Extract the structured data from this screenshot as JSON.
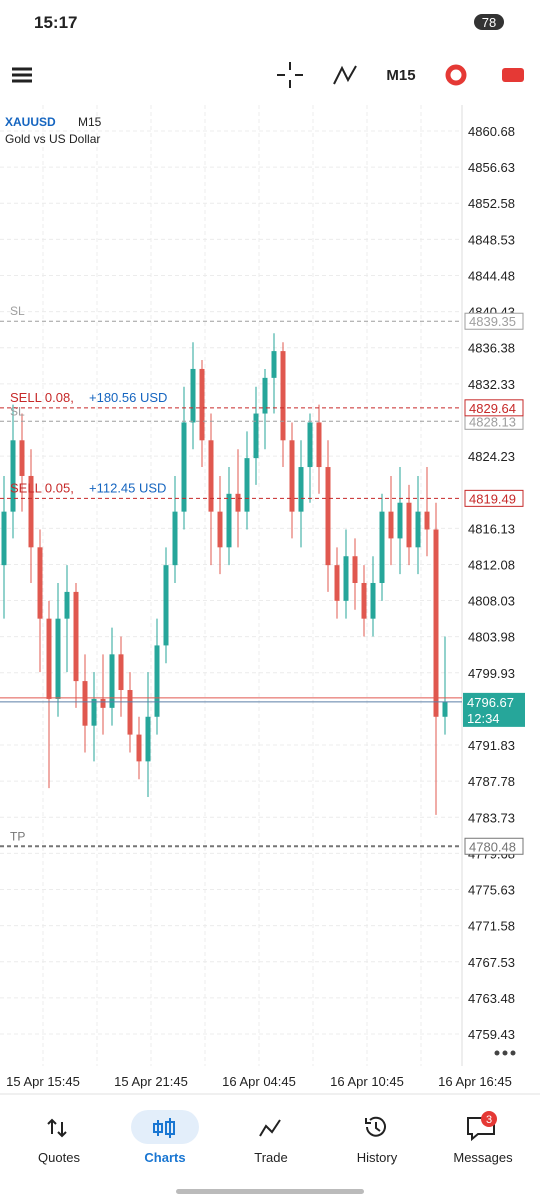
{
  "status_bar": {
    "time": "15:17",
    "battery": "78"
  },
  "toolbar": {
    "timeframe": "M15"
  },
  "chart": {
    "symbol": "XAUUSD",
    "timeframe": "M15",
    "description": "Gold vs US Dollar",
    "ylim": [
      4759.43,
      4860.68
    ],
    "yticks": [
      4860.68,
      4856.63,
      4852.58,
      4848.53,
      4844.48,
      4840.43,
      4836.38,
      4832.33,
      4824.23,
      4816.13,
      4812.08,
      4808.03,
      4803.98,
      4799.93,
      4791.83,
      4787.78,
      4783.73,
      4779.68,
      4775.63,
      4771.58,
      4767.53,
      4763.48,
      4759.43
    ],
    "x_labels": [
      "15 Apr 15:45",
      "15 Apr 21:45",
      "16 Apr 04:45",
      "16 Apr 10:45",
      "16 Apr 16:45"
    ],
    "up_color": "#26a69a",
    "down_color": "#e0584f",
    "candles": [
      {
        "open": 4812,
        "high": 4822,
        "low": 4806,
        "close": 4818
      },
      {
        "open": 4818,
        "high": 4830,
        "low": 4815,
        "close": 4826
      },
      {
        "open": 4826,
        "high": 4829,
        "low": 4818,
        "close": 4822
      },
      {
        "open": 4822,
        "high": 4825,
        "low": 4810,
        "close": 4814
      },
      {
        "open": 4814,
        "high": 4816,
        "low": 4800,
        "close": 4806
      },
      {
        "open": 4806,
        "high": 4808,
        "low": 4787,
        "close": 4797
      },
      {
        "open": 4797,
        "high": 4810,
        "low": 4795,
        "close": 4806
      },
      {
        "open": 4806,
        "high": 4812,
        "low": 4800,
        "close": 4809
      },
      {
        "open": 4809,
        "high": 4810,
        "low": 4796,
        "close": 4799
      },
      {
        "open": 4799,
        "high": 4802,
        "low": 4791,
        "close": 4794
      },
      {
        "open": 4794,
        "high": 4800,
        "low": 4790,
        "close": 4797
      },
      {
        "open": 4797,
        "high": 4802,
        "low": 4793,
        "close": 4796
      },
      {
        "open": 4796,
        "high": 4805,
        "low": 4794,
        "close": 4802
      },
      {
        "open": 4802,
        "high": 4804,
        "low": 4795,
        "close": 4798
      },
      {
        "open": 4798,
        "high": 4800,
        "low": 4791,
        "close": 4793
      },
      {
        "open": 4793,
        "high": 4795,
        "low": 4788,
        "close": 4790
      },
      {
        "open": 4790,
        "high": 4800,
        "low": 4786,
        "close": 4795
      },
      {
        "open": 4795,
        "high": 4806,
        "low": 4793,
        "close": 4803
      },
      {
        "open": 4803,
        "high": 4814,
        "low": 4801,
        "close": 4812
      },
      {
        "open": 4812,
        "high": 4822,
        "low": 4810,
        "close": 4818
      },
      {
        "open": 4818,
        "high": 4832,
        "low": 4816,
        "close": 4828
      },
      {
        "open": 4828,
        "high": 4837,
        "low": 4825,
        "close": 4834
      },
      {
        "open": 4834,
        "high": 4835,
        "low": 4823,
        "close": 4826
      },
      {
        "open": 4826,
        "high": 4829,
        "low": 4812,
        "close": 4818
      },
      {
        "open": 4818,
        "high": 4822,
        "low": 4811,
        "close": 4814
      },
      {
        "open": 4814,
        "high": 4823,
        "low": 4812,
        "close": 4820
      },
      {
        "open": 4820,
        "high": 4825,
        "low": 4814,
        "close": 4818
      },
      {
        "open": 4818,
        "high": 4827,
        "low": 4816,
        "close": 4824
      },
      {
        "open": 4824,
        "high": 4832,
        "low": 4821,
        "close": 4829
      },
      {
        "open": 4829,
        "high": 4834,
        "low": 4825,
        "close": 4833
      },
      {
        "open": 4833,
        "high": 4838,
        "low": 4829,
        "close": 4836
      },
      {
        "open": 4836,
        "high": 4837,
        "low": 4823,
        "close": 4826
      },
      {
        "open": 4826,
        "high": 4828,
        "low": 4815,
        "close": 4818
      },
      {
        "open": 4818,
        "high": 4826,
        "low": 4814,
        "close": 4823
      },
      {
        "open": 4823,
        "high": 4829,
        "low": 4819,
        "close": 4828
      },
      {
        "open": 4828,
        "high": 4830,
        "low": 4820,
        "close": 4823
      },
      {
        "open": 4823,
        "high": 4826,
        "low": 4809,
        "close": 4812
      },
      {
        "open": 4812,
        "high": 4814,
        "low": 4806,
        "close": 4808
      },
      {
        "open": 4808,
        "high": 4816,
        "low": 4806,
        "close": 4813
      },
      {
        "open": 4813,
        "high": 4815,
        "low": 4807,
        "close": 4810
      },
      {
        "open": 4810,
        "high": 4812,
        "low": 4804,
        "close": 4806
      },
      {
        "open": 4806,
        "high": 4813,
        "low": 4804,
        "close": 4810
      },
      {
        "open": 4810,
        "high": 4820,
        "low": 4808,
        "close": 4818
      },
      {
        "open": 4818,
        "high": 4822,
        "low": 4812,
        "close": 4815
      },
      {
        "open": 4815,
        "high": 4823,
        "low": 4811,
        "close": 4819
      },
      {
        "open": 4819,
        "high": 4821,
        "low": 4812,
        "close": 4814
      },
      {
        "open": 4814,
        "high": 4822,
        "low": 4811,
        "close": 4818
      },
      {
        "open": 4818,
        "high": 4823,
        "low": 4813,
        "close": 4816
      },
      {
        "open": 4816,
        "high": 4819,
        "low": 4784,
        "close": 4795
      },
      {
        "open": 4795,
        "high": 4804,
        "low": 4793,
        "close": 4796.67
      }
    ],
    "levels": [
      {
        "label": "SL",
        "price": 4839.35,
        "color": "#9e9e9e"
      },
      {
        "label": "SL",
        "price": 4828.13,
        "color": "#9e9e9e"
      },
      {
        "label": "TP",
        "price": 4780.48,
        "color": "#757575"
      }
    ],
    "orders": [
      {
        "label": "SELL 0.08,",
        "profit": "+180.56 USD",
        "price": 4829.64,
        "color": "#c62828"
      },
      {
        "label": "SELL 0.05,",
        "profit": "+112.45 USD",
        "price": 4819.49,
        "color": "#c62828"
      }
    ],
    "price": 4796.67,
    "timer": "12:34",
    "price_color": "#26a69a"
  },
  "nav": {
    "items": [
      "Quotes",
      "Charts",
      "Trade",
      "History",
      "Messages"
    ],
    "active": 1,
    "badge": 3
  }
}
